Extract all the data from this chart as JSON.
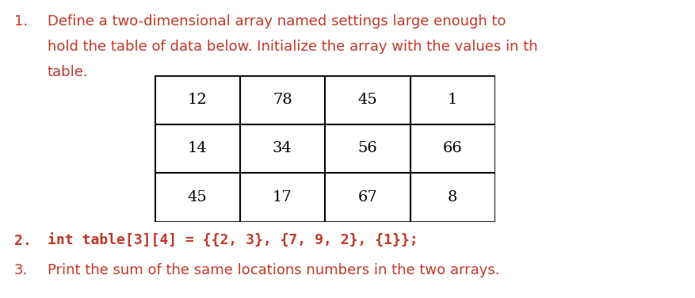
{
  "item1_label": "1.",
  "item1_line1": "Define a two-dimensional array named settings large enough to",
  "item1_line2": "hold the table of data below. Initialize the array with the values in th",
  "item1_line3": "table.",
  "table_data": [
    [
      "12",
      "78",
      "45",
      "1"
    ],
    [
      "14",
      "34",
      "56",
      "66"
    ],
    [
      "45",
      "17",
      "67",
      "8"
    ]
  ],
  "item2_label": "2.",
  "item2_text": "int table[3][4] = {{2, 3}, {7, 9, 2}, {1}};",
  "item3_label": "3.",
  "item3_text": "Print the sum of the same locations numbers in the two arrays.",
  "red": "#c0392b",
  "black": "#000000",
  "white": "#ffffff",
  "fig_width": 8.77,
  "fig_height": 3.76,
  "dpi": 100
}
